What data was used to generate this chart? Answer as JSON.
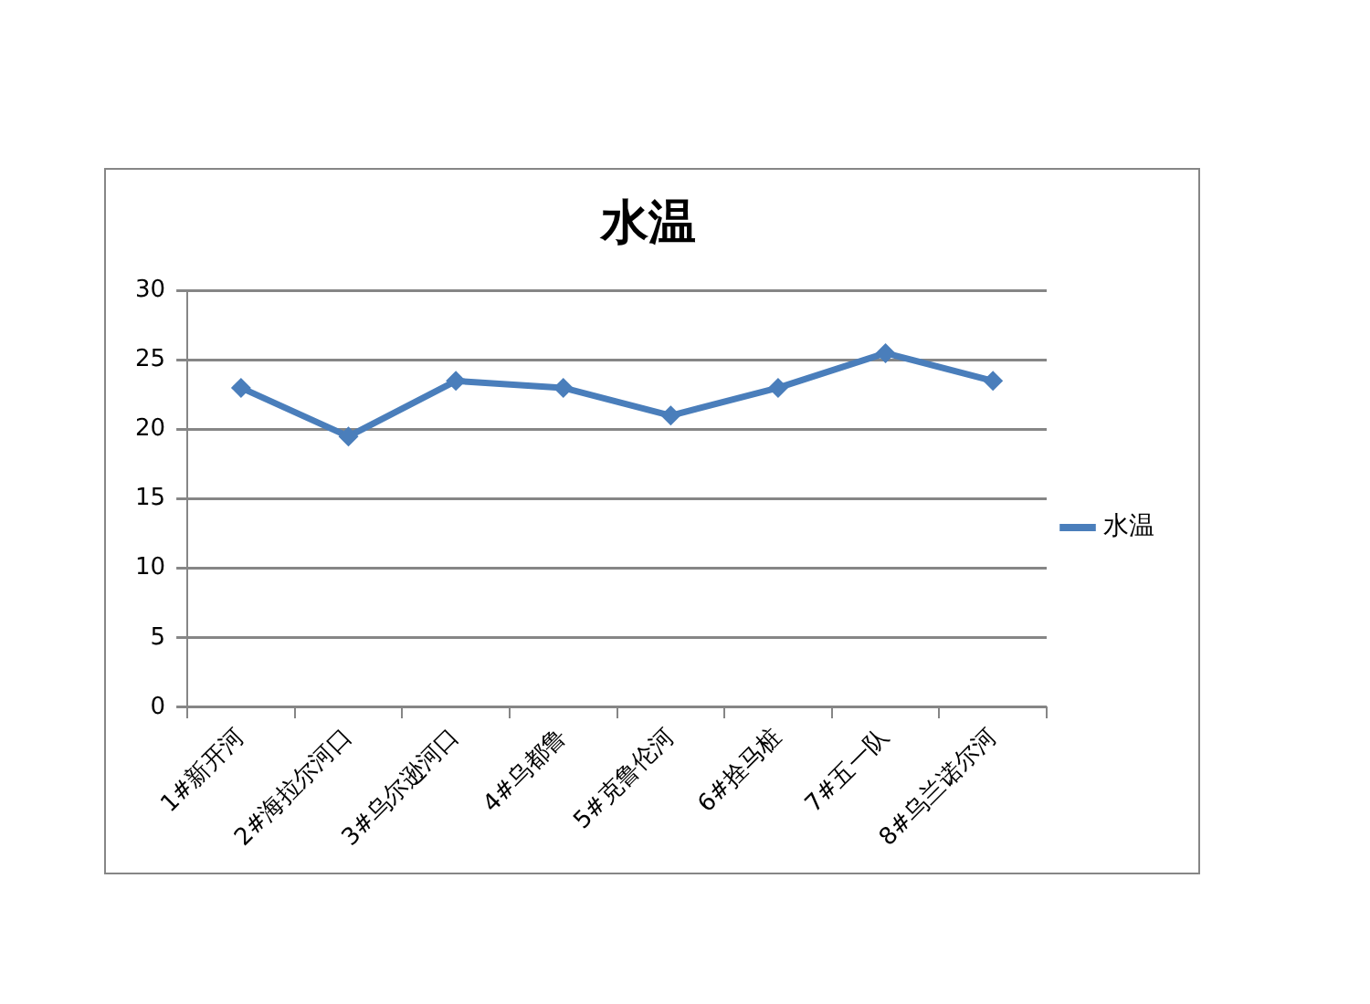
{
  "chart_data": {
    "type": "line",
    "title": "水温",
    "categories": [
      "1#新开河",
      "2#海拉尔河口",
      "3#乌尔逊河口",
      "4#乌都鲁",
      "5#克鲁伦河",
      "6#拴马桩",
      "7#五一队",
      "8#乌兰诺尔河"
    ],
    "series": [
      {
        "name": "水温",
        "color": "#4a7ebb",
        "values": [
          23,
          19.5,
          23.5,
          23,
          21,
          23,
          25.5,
          23.5
        ]
      }
    ],
    "ylim": [
      0,
      30
    ],
    "yticks": [
      0,
      5,
      10,
      15,
      20,
      25,
      30
    ],
    "grid": "y",
    "legend": "right",
    "marker": "diamond",
    "line_style": "solid"
  }
}
